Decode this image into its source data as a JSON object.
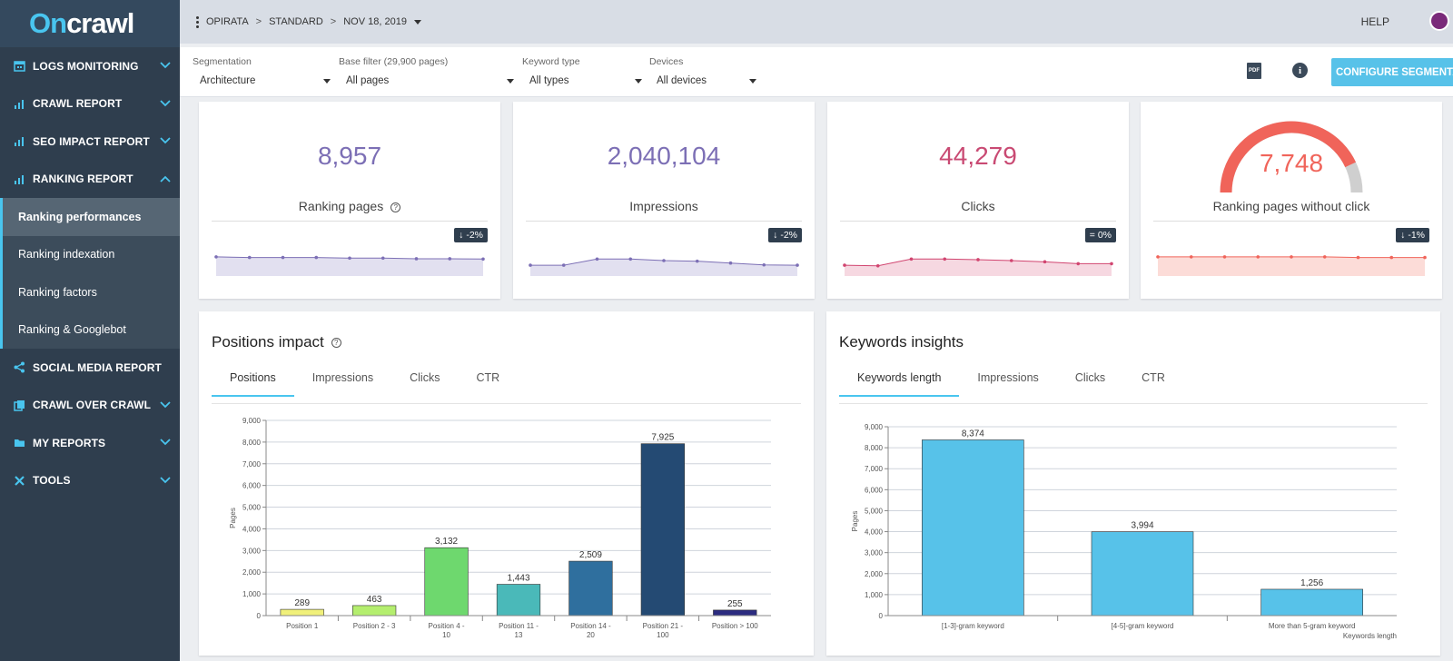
{
  "brand": {
    "logo_prefix": "On",
    "logo_suffix": "crawl",
    "accent": "#49c5ef"
  },
  "nav": {
    "items_top": [
      {
        "label": "LOGS MONITORING",
        "icon": "calendar-icon",
        "chevron": "down"
      },
      {
        "label": "CRAWL REPORT",
        "icon": "bar-chart-icon",
        "chevron": "down"
      },
      {
        "label": "SEO IMPACT REPORT",
        "icon": "bar-chart-icon",
        "chevron": "down"
      },
      {
        "label": "RANKING REPORT",
        "icon": "bar-chart-icon",
        "chevron": "up"
      }
    ],
    "sub_items": [
      "Ranking performances",
      "Ranking indexation",
      "Ranking factors",
      "Ranking & Googlebot"
    ],
    "active_sub": 0,
    "items_bottom": [
      {
        "label": "SOCIAL MEDIA REPORT",
        "icon": "share-icon",
        "chevron": ""
      },
      {
        "label": "CRAWL OVER CRAWL",
        "icon": "copy-icon",
        "chevron": "down"
      },
      {
        "label": "MY REPORTS",
        "icon": "folder-icon",
        "chevron": "down"
      },
      {
        "label": "TOOLS",
        "icon": "tools-icon",
        "chevron": "down"
      }
    ]
  },
  "topbar": {
    "breadcrumbs": [
      "OPIRATA",
      "STANDARD",
      "NOV 18, 2019"
    ],
    "help": "HELP"
  },
  "filters": {
    "segmentation": {
      "label": "Segmentation",
      "value": "Architecture"
    },
    "base_filter": {
      "label": "Base filter (29,900 pages)",
      "value": "All pages"
    },
    "keyword_type": {
      "label": "Keyword type",
      "value": "All types"
    },
    "devices": {
      "label": "Devices",
      "value": "All devices"
    },
    "configure_button": "CONFIGURE SEGMENTATION"
  },
  "kpis": [
    {
      "value": "8,957",
      "label": "Ranking pages",
      "badge": "↓ -2%",
      "color": "#7c6fb5",
      "spark_color": "#7c6fb5",
      "fill": "#e2e0f0",
      "spark": [
        0.62,
        0.6,
        0.6,
        0.6,
        0.58,
        0.58,
        0.56,
        0.56,
        0.55
      ]
    },
    {
      "value": "2,040,104",
      "label": "Impressions",
      "badge": "↓ -2%",
      "color": "#7c6fb5",
      "spark_color": "#7c6fb5",
      "fill": "#e2e0f0",
      "spark": [
        0.35,
        0.35,
        0.55,
        0.55,
        0.5,
        0.48,
        0.42,
        0.36,
        0.35
      ]
    },
    {
      "value": "44,279",
      "label": "Clicks",
      "badge": "= 0%",
      "color": "#c94a73",
      "spark_color": "#d14570",
      "fill": "#f6d8e1",
      "spark": [
        0.35,
        0.33,
        0.55,
        0.55,
        0.53,
        0.5,
        0.46,
        0.4,
        0.4
      ]
    },
    {
      "value": "7,748",
      "label": "Ranking pages without click",
      "badge": "↓ -1%",
      "color": "#f0645a",
      "spark_color": "#f0645a",
      "fill": "#fcdcd8",
      "spark": [
        0.62,
        0.62,
        0.62,
        0.62,
        0.62,
        0.62,
        0.6,
        0.6,
        0.6
      ],
      "gauge": 0.86
    }
  ],
  "positions": {
    "title": "Positions impact",
    "tabs": [
      "Positions",
      "Impressions",
      "Clicks",
      "CTR"
    ],
    "active_tab": 0
  },
  "keywords": {
    "title": "Keywords insights",
    "tabs": [
      "Keywords length",
      "Impressions",
      "Clicks",
      "CTR"
    ],
    "active_tab": 0
  },
  "chart_data": [
    {
      "type": "bar",
      "title": "Positions impact",
      "ylabel": "Pages",
      "xlabel": "",
      "ylim": [
        0,
        9000
      ],
      "yticks": [
        0,
        1000,
        2000,
        3000,
        4000,
        5000,
        6000,
        7000,
        8000,
        9000
      ],
      "ytick_labels": [
        "0",
        "1,000",
        "2,000",
        "3,000",
        "4,000",
        "5,000",
        "6,000",
        "7,000",
        "8,000",
        "9,000"
      ],
      "categories": [
        "Position 1",
        "Position 2 - 3",
        "Position 4 - 10",
        "Position 11 - 13",
        "Position 14 - 20",
        "Position 21 - 100",
        "Position > 100"
      ],
      "category_lines": [
        [
          "Position 1"
        ],
        [
          "Position 2 - 3"
        ],
        [
          "Position 4 -",
          "10"
        ],
        [
          "Position 11 -",
          "13"
        ],
        [
          "Position 14 -",
          "20"
        ],
        [
          "Position 21 -",
          "100"
        ],
        [
          "Position > 100"
        ]
      ],
      "values": [
        289,
        463,
        3132,
        1443,
        2509,
        7925,
        255
      ],
      "value_labels": [
        "289",
        "463",
        "3,132",
        "1,443",
        "2,509",
        "7,925",
        "255"
      ],
      "colors": [
        "#f0f07a",
        "#b4ee6e",
        "#6ed86e",
        "#4ab9b9",
        "#2f6f9e",
        "#244a73",
        "#2c2c80"
      ]
    },
    {
      "type": "bar",
      "title": "Keywords insights",
      "ylabel": "Pages",
      "xlabel": "Keywords length",
      "ylim": [
        0,
        9000
      ],
      "yticks": [
        0,
        1000,
        2000,
        3000,
        4000,
        5000,
        6000,
        7000,
        8000,
        9000
      ],
      "ytick_labels": [
        "0",
        "1,000",
        "2,000",
        "3,000",
        "4,000",
        "5,000",
        "6,000",
        "7,000",
        "8,000",
        "9,000"
      ],
      "categories": [
        "[1-3]-gram keyword",
        "[4-5]-gram keyword",
        "More than 5-gram keyword"
      ],
      "category_lines": [
        [
          "[1-3]-gram keyword"
        ],
        [
          "[4-5]-gram keyword"
        ],
        [
          "More than 5-gram keyword"
        ]
      ],
      "values": [
        8374,
        3994,
        1256
      ],
      "value_labels": [
        "8,374",
        "3,994",
        "1,256"
      ],
      "colors": [
        "#57c2e9",
        "#57c2e9",
        "#57c2e9"
      ]
    }
  ]
}
